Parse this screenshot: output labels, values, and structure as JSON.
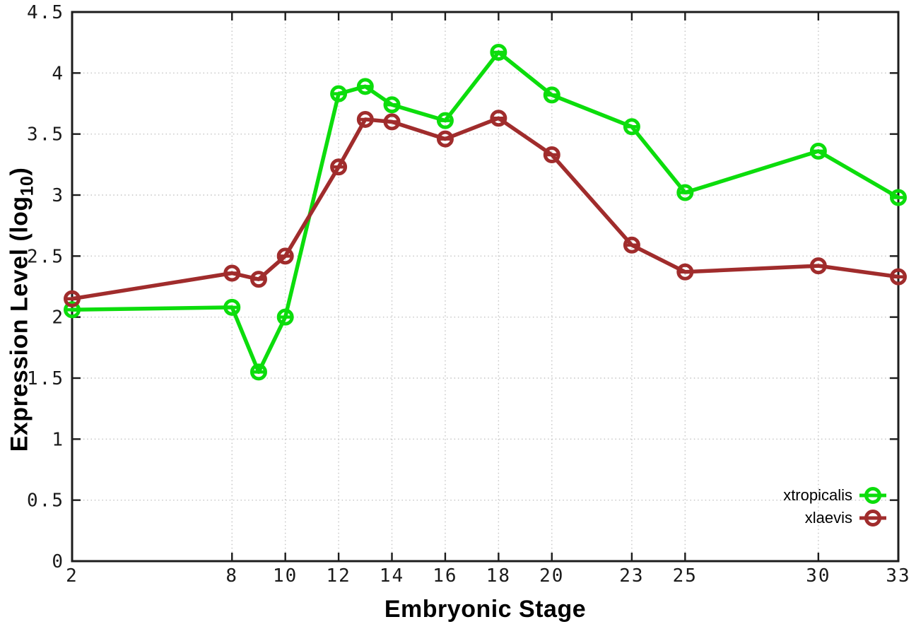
{
  "chart_data": {
    "type": "line",
    "title": "",
    "xlabel": "Embryonic Stage",
    "ylabel": "Expression Level (log10)",
    "ylabel_parts": {
      "main": "Expression Level (log",
      "sub": "10",
      "end": ")"
    },
    "x": [
      2,
      8,
      9,
      10,
      12,
      13,
      14,
      16,
      18,
      20,
      23,
      25,
      30,
      33
    ],
    "series": [
      {
        "name": "xtropicalis",
        "color": "#0cdd0c",
        "values": [
          2.06,
          2.08,
          1.55,
          2.0,
          3.83,
          3.89,
          3.74,
          3.61,
          4.17,
          3.82,
          3.56,
          3.02,
          3.36,
          2.98
        ]
      },
      {
        "name": "xlaevis",
        "color": "#a02c2c",
        "values": [
          2.15,
          2.36,
          2.31,
          2.5,
          3.23,
          3.62,
          3.6,
          3.46,
          3.63,
          3.33,
          2.59,
          2.37,
          2.42,
          2.33
        ]
      }
    ],
    "xlim": [
      2,
      33
    ],
    "ylim": [
      0,
      4.5
    ],
    "x_ticks": [
      2,
      8,
      10,
      12,
      14,
      16,
      18,
      20,
      23,
      25,
      30,
      33
    ],
    "y_ticks": [
      0,
      0.5,
      1,
      1.5,
      2,
      2.5,
      3,
      3.5,
      4,
      4.5
    ],
    "grid": true,
    "legend_position": "bottom-right",
    "marker": "open-circle-with-yerrorbar"
  },
  "style_colors": {
    "axis": "#1c1c1c",
    "grid": "#c4c4c4",
    "text": "#000000",
    "background": "#ffffff"
  }
}
